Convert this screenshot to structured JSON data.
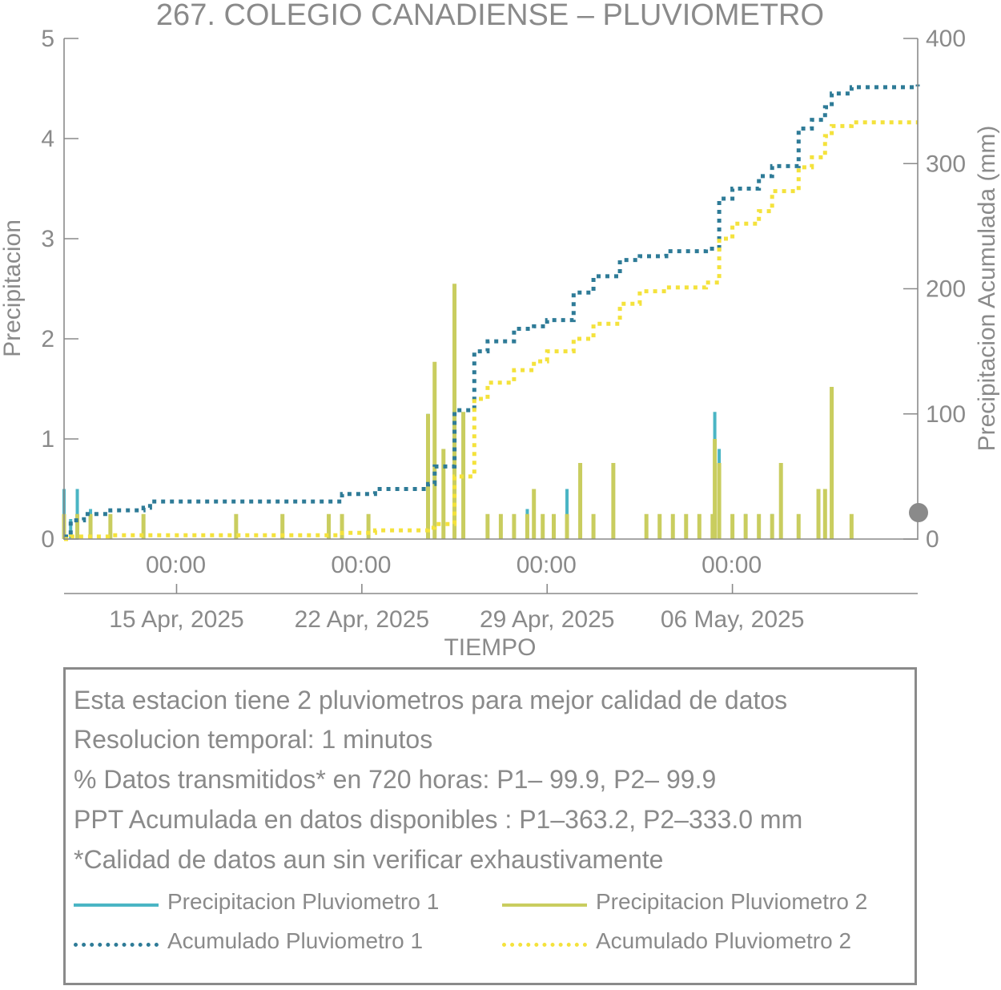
{
  "chart_data": {
    "type": "bar",
    "title": "267. COLEGIO CANADIENSE – PLUVIOMETRO",
    "xlabel": "TIEMPO",
    "ylabel": "Precipitacion",
    "ylabel_right": "Precipitacion Acumulada (mm)",
    "ylim": [
      0,
      5
    ],
    "ylim_right": [
      0,
      400
    ],
    "yticks_left": [
      "0",
      "1",
      "2",
      "3",
      "4",
      "5"
    ],
    "yticks_right": [
      "0",
      "100",
      "200",
      "300",
      "400"
    ],
    "x_range": [
      "2025-04-10 18:00",
      "2025-05-13 00:00"
    ],
    "xtick_time_labels": [
      "00:00",
      "00:00",
      "00:00",
      "00:00"
    ],
    "xtick_date_labels": [
      "15 Apr, 2025",
      "22 Apr, 2025",
      "29 Apr, 2025",
      "06 May, 2025"
    ],
    "xtick_dates": [
      "2025-04-15",
      "2025-04-22",
      "2025-04-29",
      "2025-05-06"
    ],
    "grid": false,
    "colors": {
      "p1_bars": "#4ab5c4",
      "p2_bars": "#c9cd5f",
      "p1_cum": "#2e7b97",
      "p2_cum": "#f4e23c",
      "axis": "#8a8a8a"
    },
    "series": [
      {
        "name": "Precipitacion Pluviometro 1",
        "kind": "bar",
        "axis": "left",
        "x": [
          "2025-04-10 18:00",
          "2025-04-11 00:00",
          "2025-04-11 06:00",
          "2025-04-11 18:00",
          "2025-04-12 12:00",
          "2025-04-13 18:00",
          "2025-04-17 06:00",
          "2025-04-19 00:00",
          "2025-04-20 18:00",
          "2025-04-21 06:00",
          "2025-04-22 06:00",
          "2025-04-24 12:00",
          "2025-04-24 18:00",
          "2025-04-25 02:00",
          "2025-04-25 12:00",
          "2025-04-25 20:00",
          "2025-04-26 18:00",
          "2025-04-27 06:00",
          "2025-04-27 18:00",
          "2025-04-28 06:00",
          "2025-04-28 12:00",
          "2025-04-28 20:00",
          "2025-04-29 06:00",
          "2025-04-29 18:00",
          "2025-04-30 06:00",
          "2025-04-30 18:00",
          "2025-05-01 12:00",
          "2025-05-02 18:00",
          "2025-05-03 06:00",
          "2025-05-03 18:00",
          "2025-05-04 06:00",
          "2025-05-04 18:00",
          "2025-05-05 06:00",
          "2025-05-05 08:00",
          "2025-05-05 12:00",
          "2025-05-06 00:00",
          "2025-05-06 12:00",
          "2025-05-07 00:00",
          "2025-05-07 12:00",
          "2025-05-07 20:00",
          "2025-05-08 12:00",
          "2025-05-09 06:00",
          "2025-05-09 12:00",
          "2025-05-09 18:00",
          "2025-05-10 12:00"
        ],
        "values": [
          0.5,
          0.2,
          0.5,
          0.3,
          0.2,
          0.2,
          0.2,
          0.2,
          0.2,
          0.2,
          0.2,
          1.25,
          1.7,
          0.9,
          2.5,
          1.2,
          0.2,
          0.2,
          0.2,
          0.3,
          0.5,
          0.2,
          0.2,
          0.5,
          0.7,
          0.2,
          0.7,
          0.2,
          0.2,
          0.2,
          0.2,
          0.2,
          0.2,
          1.27,
          0.9,
          0.2,
          0.25,
          0.2,
          0.25,
          0.7,
          0.2,
          0.2,
          0.5,
          1.5,
          0.2
        ]
      },
      {
        "name": "Precipitacion Pluviometro 2",
        "kind": "bar",
        "axis": "left",
        "x": [
          "2025-04-10 18:00",
          "2025-04-11 06:00",
          "2025-04-11 18:00",
          "2025-04-12 12:00",
          "2025-04-13 18:00",
          "2025-04-17 06:00",
          "2025-04-19 00:00",
          "2025-04-20 18:00",
          "2025-04-21 06:00",
          "2025-04-22 06:00",
          "2025-04-24 12:00",
          "2025-04-24 18:00",
          "2025-04-25 02:00",
          "2025-04-25 12:00",
          "2025-04-25 20:00",
          "2025-04-26 18:00",
          "2025-04-27 06:00",
          "2025-04-27 18:00",
          "2025-04-28 06:00",
          "2025-04-28 12:00",
          "2025-04-28 20:00",
          "2025-04-29 06:00",
          "2025-04-29 18:00",
          "2025-04-30 06:00",
          "2025-04-30 18:00",
          "2025-05-01 12:00",
          "2025-05-02 18:00",
          "2025-05-03 06:00",
          "2025-05-03 18:00",
          "2025-05-04 06:00",
          "2025-05-04 18:00",
          "2025-05-05 06:00",
          "2025-05-05 08:00",
          "2025-05-05 12:00",
          "2025-05-06 00:00",
          "2025-05-06 12:00",
          "2025-05-07 00:00",
          "2025-05-07 12:00",
          "2025-05-07 20:00",
          "2025-05-08 12:00",
          "2025-05-09 06:00",
          "2025-05-09 12:00",
          "2025-05-09 18:00",
          "2025-05-10 12:00"
        ],
        "values": [
          0.25,
          0.25,
          0.25,
          0.25,
          0.25,
          0.25,
          0.25,
          0.25,
          0.25,
          0.25,
          1.25,
          1.77,
          0.9,
          2.55,
          1.27,
          0.25,
          0.25,
          0.25,
          0.25,
          0.5,
          0.25,
          0.25,
          0.25,
          0.76,
          0.25,
          0.76,
          0.25,
          0.25,
          0.25,
          0.25,
          0.25,
          0.25,
          1.0,
          0.76,
          0.25,
          0.25,
          0.25,
          0.25,
          0.76,
          0.25,
          0.5,
          0.5,
          1.52,
          0.25
        ]
      },
      {
        "name": "Acumulado Pluviometro 1",
        "kind": "line",
        "style": "dotted",
        "axis": "right",
        "x": [
          "2025-04-10 18:00",
          "2025-04-11 00:00",
          "2025-04-11 12:00",
          "2025-04-12 12:00",
          "2025-04-13 18:00",
          "2025-04-14 00:00",
          "2025-04-17 00:00",
          "2025-04-19 00:00",
          "2025-04-21 06:00",
          "2025-04-22 12:00",
          "2025-04-24 12:00",
          "2025-04-24 18:00",
          "2025-04-25 12:00",
          "2025-04-26 06:00",
          "2025-04-26 18:00",
          "2025-04-27 18:00",
          "2025-04-28 12:00",
          "2025-04-29 00:00",
          "2025-04-30 00:00",
          "2025-04-30 18:00",
          "2025-05-01 18:00",
          "2025-05-02 12:00",
          "2025-05-03 12:00",
          "2025-05-05 00:00",
          "2025-05-05 12:00",
          "2025-05-06 00:00",
          "2025-05-07 00:00",
          "2025-05-07 12:00",
          "2025-05-08 12:00",
          "2025-05-09 00:00",
          "2025-05-09 12:00",
          "2025-05-09 18:00",
          "2025-05-10 12:00",
          "2025-05-13 00:00"
        ],
        "values": [
          2,
          15,
          20,
          23,
          25,
          30,
          30,
          30,
          36,
          40,
          44,
          58,
          103,
          150,
          158,
          168,
          170,
          175,
          197,
          210,
          223,
          226,
          230,
          232,
          272,
          280,
          290,
          298,
          328,
          335,
          345,
          356,
          361,
          363.2
        ]
      },
      {
        "name": "Acumulado Pluviometro 2",
        "kind": "line",
        "style": "dotted",
        "axis": "right",
        "x": [
          "2025-04-10 18:00",
          "2025-04-11 00:00",
          "2025-04-12 12:00",
          "2025-04-14 00:00",
          "2025-04-17 00:00",
          "2025-04-19 00:00",
          "2025-04-21 06:00",
          "2025-04-22 12:00",
          "2025-04-24 12:00",
          "2025-04-24 18:00",
          "2025-04-25 12:00",
          "2025-04-26 06:00",
          "2025-04-26 18:00",
          "2025-04-27 18:00",
          "2025-04-28 12:00",
          "2025-04-29 00:00",
          "2025-04-30 00:00",
          "2025-04-30 18:00",
          "2025-05-01 18:00",
          "2025-05-02 12:00",
          "2025-05-03 12:00",
          "2025-05-05 00:00",
          "2025-05-05 12:00",
          "2025-05-06 00:00",
          "2025-05-07 00:00",
          "2025-05-07 12:00",
          "2025-05-08 12:00",
          "2025-05-09 00:00",
          "2025-05-09 12:00",
          "2025-05-09 18:00",
          "2025-05-10 12:00",
          "2025-05-13 00:00"
        ],
        "values": [
          0,
          2,
          3,
          3,
          3,
          3,
          5,
          7,
          9,
          12,
          50,
          112,
          125,
          135,
          142,
          150,
          160,
          172,
          188,
          198,
          201,
          205,
          240,
          252,
          262,
          278,
          297,
          305,
          322,
          330,
          333,
          333.0
        ]
      }
    ]
  },
  "notes": {
    "lines": [
      "Esta estacion tiene 2 pluviometros para mejor calidad de datos",
      "Resolucion temporal: 1 minutos",
      "% Datos transmitidos* en 720 horas: P1– 99.9, P2– 99.9",
      "PPT Acumulada en datos disponibles : P1–363.2, P2–333.0 mm",
      "*Calidad de datos aun sin verificar exhaustivamente"
    ]
  },
  "legend": {
    "items": [
      {
        "label": "Precipitacion Pluviometro 1",
        "style": "solid",
        "color": "#4ab5c4"
      },
      {
        "label": "Precipitacion Pluviometro 2",
        "style": "solid",
        "color": "#c9cd5f"
      },
      {
        "label": "Acumulado Pluviometro 1",
        "style": "dotted",
        "color": "#2e7b97"
      },
      {
        "label": "Acumulado Pluviometro 2",
        "style": "dotted",
        "color": "#f4e23c"
      }
    ]
  }
}
